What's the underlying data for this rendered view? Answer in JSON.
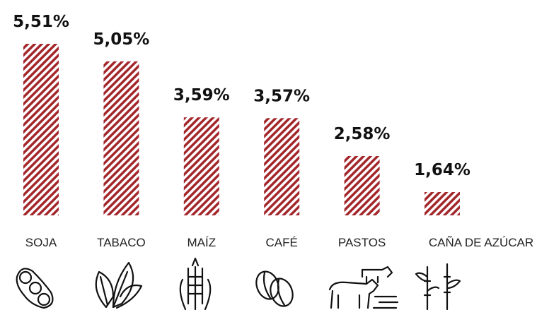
{
  "chart_data": {
    "type": "bar",
    "categories": [
      "SOJA",
      "TABACO",
      "MAÍZ",
      "CAFÉ",
      "PASTOS",
      "CAÑA DE AZÚCAR"
    ],
    "values": [
      5.51,
      5.05,
      3.59,
      3.57,
      2.58,
      1.64
    ],
    "value_labels": [
      "5,51%",
      "5,05%",
      "3,59%",
      "3,57%",
      "2,58%",
      "1,64%"
    ],
    "color": "#a3262b"
  }
}
